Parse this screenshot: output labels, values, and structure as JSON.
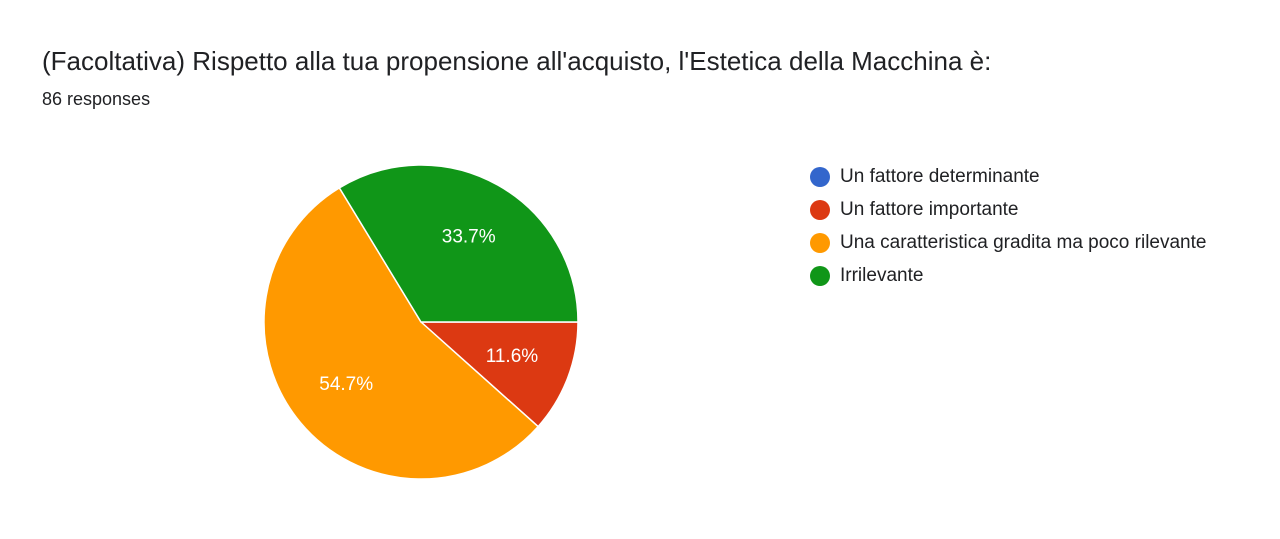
{
  "chart_data": {
    "type": "pie",
    "title": "(Facoltativa) Rispetto alla tua propensione all'acquisto, l'Estetica della Macchina è:",
    "subtitle": "86 responses",
    "legend_position": "right",
    "series": [
      {
        "name": "Un fattore determinante",
        "value": 0,
        "percent_label": "",
        "color": "#3366cc"
      },
      {
        "name": "Un fattore importante",
        "value": 11.6,
        "percent_label": "11.6%",
        "color": "#dc3912"
      },
      {
        "name": "Una caratteristica gradita ma poco rilevante",
        "value": 54.7,
        "percent_label": "54.7%",
        "color": "#ff9900"
      },
      {
        "name": "Irrilevante",
        "value": 33.7,
        "percent_label": "33.7%",
        "color": "#109618"
      }
    ]
  }
}
